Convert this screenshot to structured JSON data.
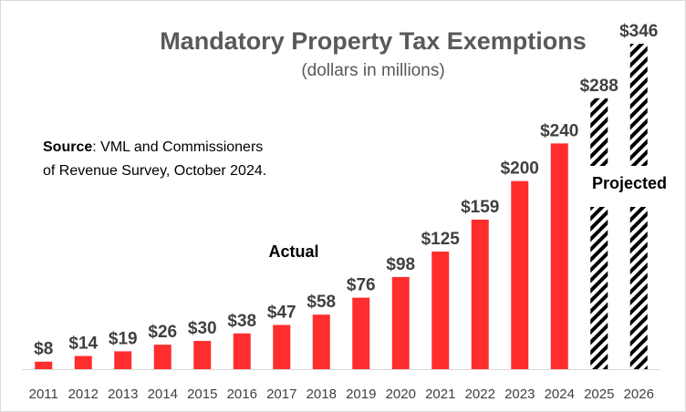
{
  "chart_data": {
    "type": "bar",
    "title": "Mandatory Property Tax Exemptions",
    "subtitle": "(dollars in millions)",
    "source_label": "Source",
    "source_text_line1": ": VML and Commissioners",
    "source_text_line2": "of Revenue Survey, October 2024.",
    "annotations": {
      "actual": "Actual",
      "projected": "Projected"
    },
    "categories": [
      "2011",
      "2012",
      "2013",
      "2014",
      "2015",
      "2016",
      "2017",
      "2018",
      "2019",
      "2020",
      "2021",
      "2022",
      "2023",
      "2024",
      "2025",
      "2026"
    ],
    "values": [
      8,
      14,
      19,
      26,
      30,
      38,
      47,
      58,
      76,
      98,
      125,
      159,
      200,
      240,
      288,
      346
    ],
    "value_labels": [
      "$8",
      "$14",
      "$19",
      "$26",
      "$30",
      "$38",
      "$47",
      "$58",
      "$76",
      "$98",
      "$125",
      "$159",
      "$200",
      "$240",
      "$288",
      "$346"
    ],
    "projected": [
      false,
      false,
      false,
      false,
      false,
      false,
      false,
      false,
      false,
      false,
      false,
      false,
      false,
      false,
      true,
      true
    ],
    "ylim": [
      0,
      346
    ],
    "grid": false,
    "legend": "none",
    "colors": {
      "actual": "#ff2d2d",
      "projected": "#000000",
      "axis": "#d9d9d9"
    }
  }
}
